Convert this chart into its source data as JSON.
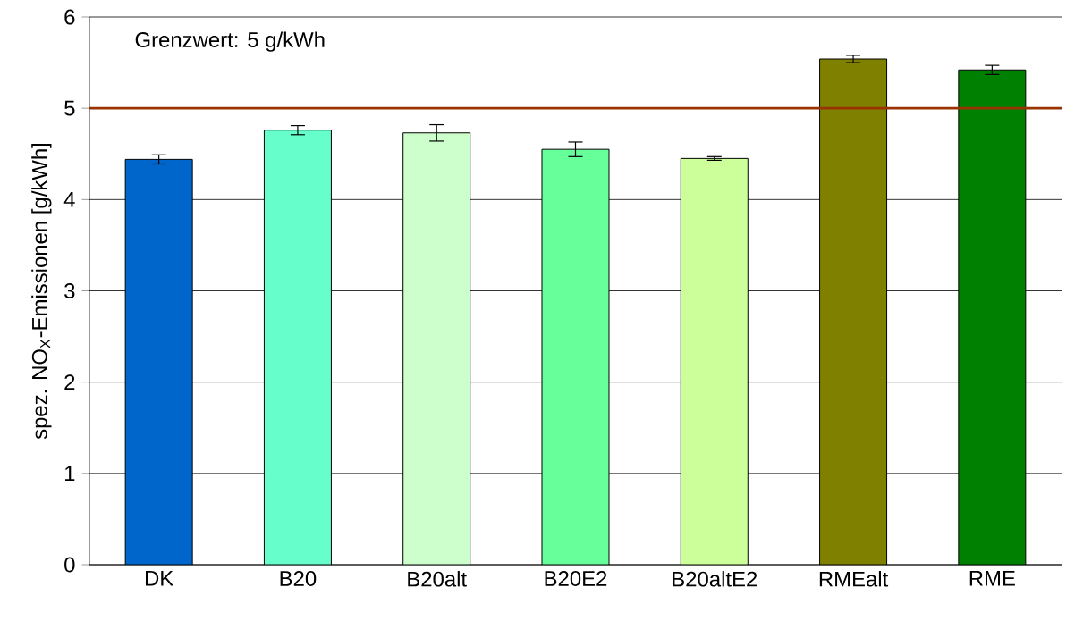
{
  "chart_data": {
    "type": "bar",
    "ylabel": "spez. NO$_{X}$-Emissionen [g/kWh]",
    "categories": [
      "DK",
      "B20",
      "B20alt",
      "B20E2",
      "B20altE2",
      "RMEalt",
      "RME"
    ],
    "values": [
      4.44,
      4.76,
      4.73,
      4.55,
      4.45,
      5.54,
      5.42
    ],
    "errors": [
      0.05,
      0.05,
      0.09,
      0.08,
      0.02,
      0.04,
      0.05
    ],
    "colors": [
      "#0066cc",
      "#66ffcc",
      "#ccffcc",
      "#66ff99",
      "#ccff99",
      "#808000",
      "#008000"
    ],
    "ylim": [
      0,
      6
    ],
    "yticks": [
      0,
      1,
      2,
      3,
      4,
      5,
      6
    ],
    "grid": "y",
    "ref_lines": [
      {
        "axis": "y",
        "value": 5,
        "label": "Grenzwert: 5 g/kWh",
        "color": "#993300"
      }
    ]
  }
}
